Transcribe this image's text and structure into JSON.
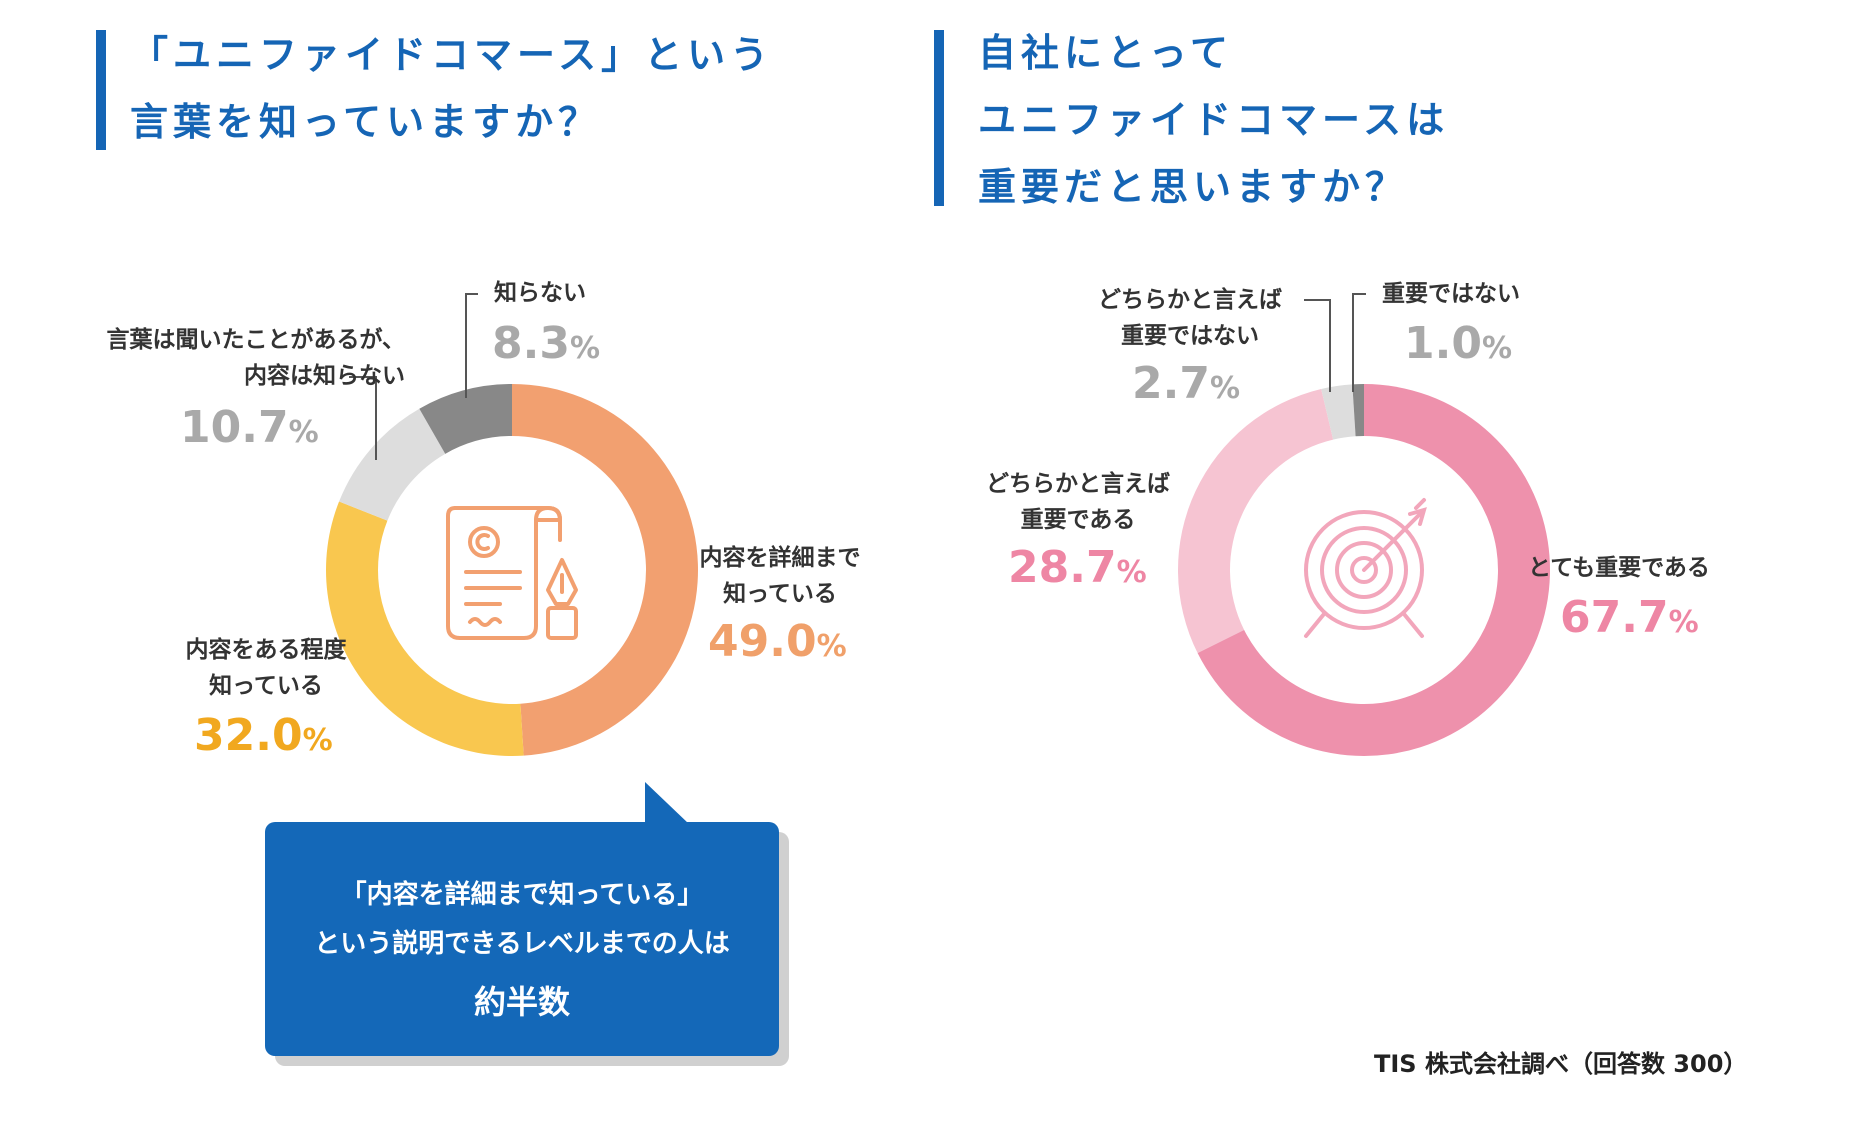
{
  "chart_data": [
    {
      "type": "pie",
      "title_lines": [
        "「ユニファイドコマース」という",
        "言葉を知っていますか？"
      ],
      "categories": [
        "内容を詳細まで知っている",
        "内容をある程度知っている",
        "言葉は聞いたことがあるが、内容は知らない",
        "知らない"
      ],
      "values": [
        49.0,
        32.0,
        10.7,
        8.3
      ],
      "colors": [
        "#f2a070",
        "#f9c74f",
        "#dddddd",
        "#888888"
      ],
      "labels": [
        {
          "lines": [
            "内容を詳細まで",
            "知っている"
          ],
          "value": "49.0",
          "unit": "%",
          "color": "#f0a06a"
        },
        {
          "lines": [
            "内容をある程度",
            "知っている"
          ],
          "value": "32.0",
          "unit": "%",
          "color": "#f1a81f"
        },
        {
          "lines": [
            "言葉は聞いたことがあるが、",
            "内容は知らない"
          ],
          "value": "10.7",
          "unit": "%",
          "color": "#a9a9a9"
        },
        {
          "lines": [
            "知らない"
          ],
          "value": "8.3",
          "unit": "%",
          "color": "#a9a9a9"
        }
      ],
      "center_icon": "document-pen-icon"
    },
    {
      "type": "pie",
      "title_lines": [
        "自社にとって",
        "ユニファイドコマースは",
        "重要だと思いますか？"
      ],
      "categories": [
        "とても重要である",
        "どちらかと言えば重要である",
        "どちらかと言えば重要ではない",
        "重要ではない"
      ],
      "values": [
        67.7,
        28.7,
        2.7,
        1.0
      ],
      "colors": [
        "#ee91ac",
        "#f6c4d2",
        "#dddddd",
        "#888888"
      ],
      "labels": [
        {
          "lines": [
            "とても重要である"
          ],
          "value": "67.7",
          "unit": "%",
          "color": "#ee86a4"
        },
        {
          "lines": [
            "どちらかと言えば",
            "重要である"
          ],
          "value": "28.7",
          "unit": "%",
          "color": "#ee86a4"
        },
        {
          "lines": [
            "どちらかと言えば",
            "重要ではない"
          ],
          "value": "2.7",
          "unit": "%",
          "color": "#a9a9a9"
        },
        {
          "lines": [
            "重要ではない"
          ],
          "value": "1.0",
          "unit": "%",
          "color": "#a9a9a9"
        }
      ],
      "center_icon": "target-arrow-icon"
    }
  ],
  "callout": {
    "line1": "「内容を詳細まで知っている」",
    "line2": "という説明できるレベルまでの人は",
    "line3": "約半数"
  },
  "source": "TIS 株式会社調べ（回答数 300）"
}
